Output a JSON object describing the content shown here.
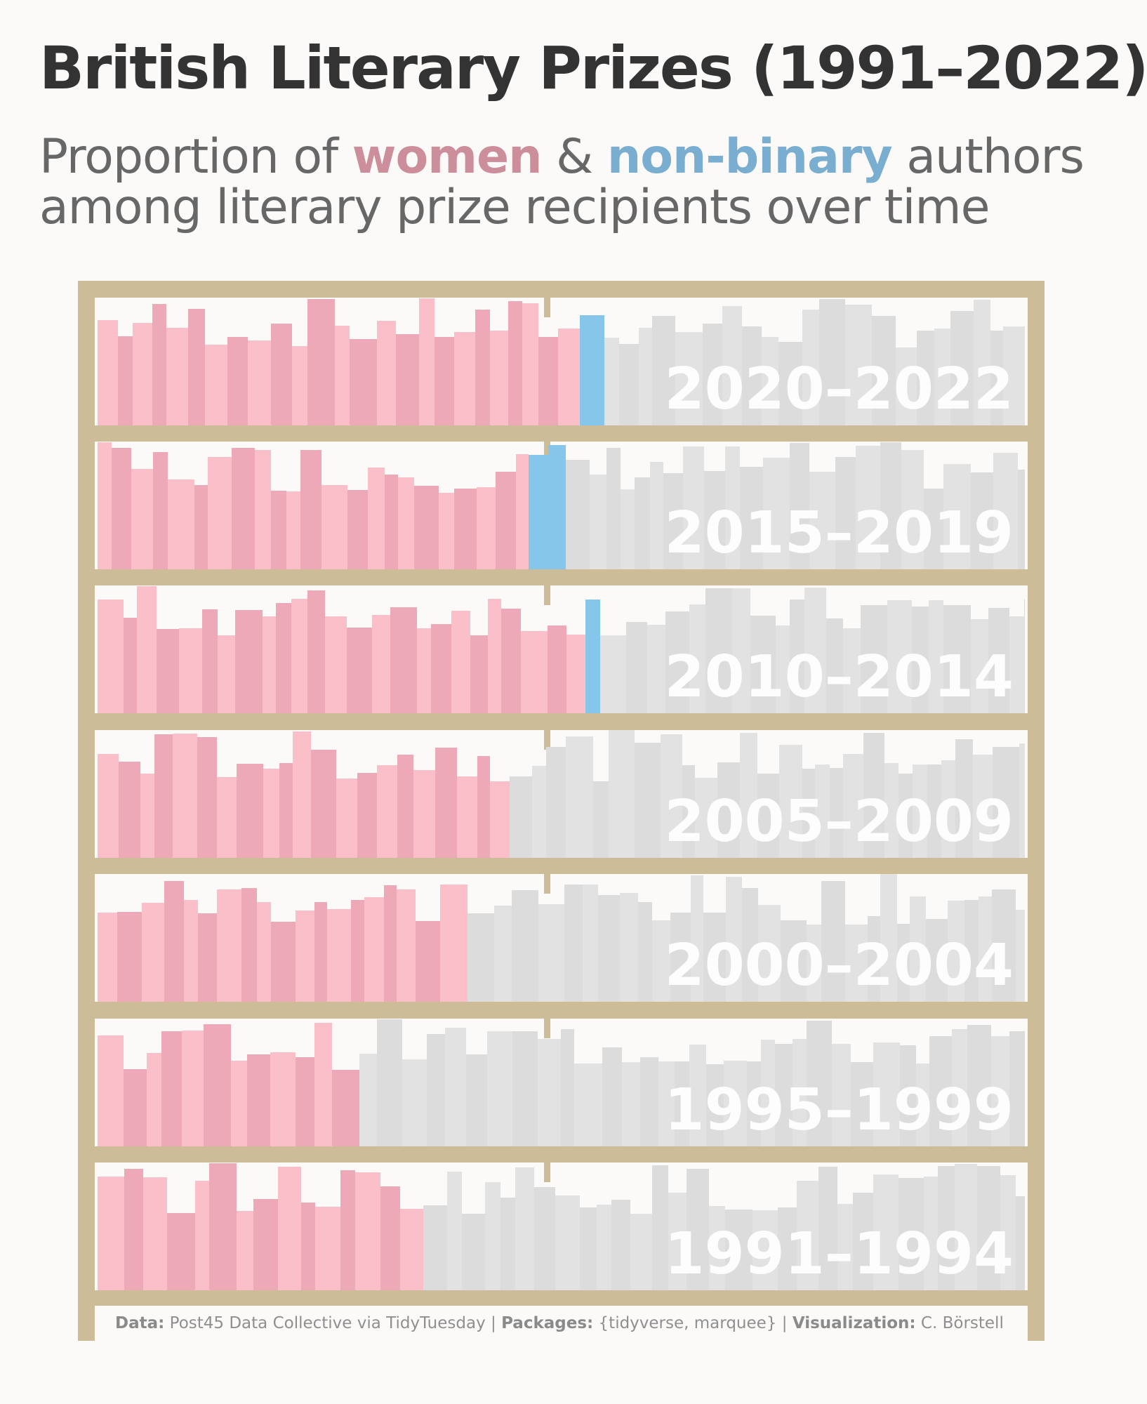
{
  "title": "British Literary Prizes (1991–2022)",
  "subtitle": {
    "prefix": "Proportion of ",
    "women": "women",
    "amp": " & ",
    "nonbinary": "non-binary",
    "suffix": " authors",
    "line2": "among literary prize recipients over time"
  },
  "caption": {
    "data_label": "Data:",
    "data_value": " Post45 Data Collective via TidyTuesday | ",
    "packages_label": "Packages:",
    "packages_value": " {tidyverse, marquee} | ",
    "viz_label": "Visualization:",
    "viz_value": " C. Börstell"
  },
  "colors": {
    "women": "#fbbfca",
    "women_alt": "#eea9b8",
    "nonbinary": "#86c6ea",
    "men": "#e2e2e2",
    "men_alt": "#dcdcdc",
    "shelf_wood": "#ccbc98",
    "background": "#fcfaf9"
  },
  "chart_data": {
    "type": "bar",
    "description_units": "proportion of recipients (0–1) per period, stacked horizontally as books on a shelf",
    "series_names": [
      "women",
      "non-binary",
      "men"
    ],
    "periods": [
      {
        "label": "2020–2022",
        "women": 0.516,
        "nonbinary": 0.03,
        "men": 0.454
      },
      {
        "label": "2015–2019",
        "women": 0.459,
        "nonbinary": 0.04,
        "men": 0.501
      },
      {
        "label": "2010–2014",
        "women": 0.528,
        "nonbinary": 0.012,
        "men": 0.46
      },
      {
        "label": "2005–2009",
        "women": 0.45,
        "nonbinary": 0.0,
        "men": 0.55
      },
      {
        "label": "2000–2004",
        "women": 0.398,
        "nonbinary": 0.0,
        "men": 0.602
      },
      {
        "label": "1995–1999",
        "women": 0.292,
        "nonbinary": 0.0,
        "men": 0.708
      },
      {
        "label": "1991–1994",
        "women": 0.349,
        "nonbinary": 0.0,
        "men": 0.651
      }
    ]
  }
}
